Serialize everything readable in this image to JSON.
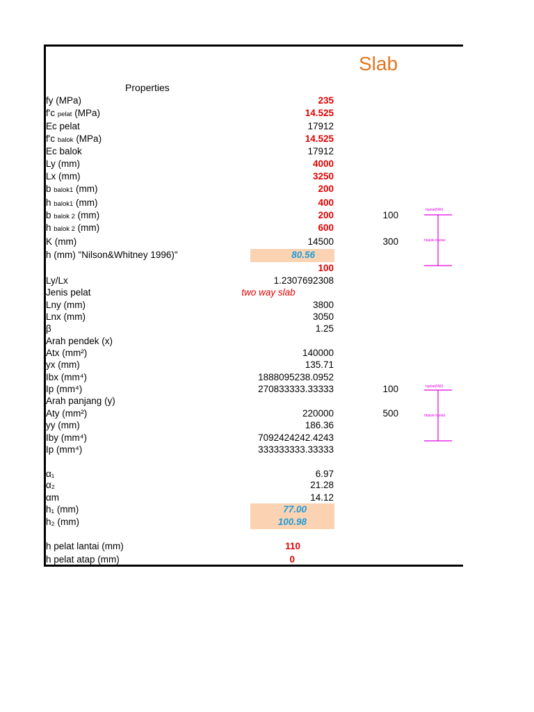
{
  "title": "Slab",
  "properties_title": "Properties",
  "rows": {
    "fy": {
      "label": "fy (MPa)",
      "value": "235"
    },
    "fc_pelat": {
      "label_a": "f'c ",
      "label_sub": "pelat",
      "label_b": " (MPa)",
      "value": "14.525"
    },
    "ec_pelat": {
      "label": "Ec pelat",
      "value": "17912"
    },
    "fc_balok": {
      "label_a": "f'c ",
      "label_sub": "balok",
      "label_b": " (MPa)",
      "value": "14.525"
    },
    "ec_balok": {
      "label": "Ec balok",
      "value": "17912"
    },
    "ly": {
      "label": "Ly (mm)",
      "value": "4000"
    },
    "lx": {
      "label": "Lx (mm)",
      "value": "3250"
    },
    "b_balok1": {
      "label_a": "b ",
      "label_sub": "balok1",
      "label_b": " (mm)",
      "value": "200"
    },
    "h_balok1": {
      "label_a": "h ",
      "label_sub": "balok1",
      "label_b": " (mm)",
      "value": "400"
    },
    "b_balok2": {
      "label_a": "b ",
      "label_sub": "balok 2",
      "label_b": " (mm)",
      "value": "200"
    },
    "h_balok2": {
      "label_a": "h ",
      "label_sub": "balok 2",
      "label_b": " (mm)",
      "value": "600"
    },
    "k": {
      "label": "K (mm)",
      "value": "14500"
    },
    "h_nilson": {
      "label": "h (mm) \"Nilson&Whitney 1996)\"",
      "value": "80.56"
    },
    "h_used": {
      "value": "100"
    },
    "ly_lx": {
      "label": "Ly/Lx",
      "value": "1.2307692308"
    },
    "jenis_pelat": {
      "label": "Jenis pelat",
      "value": "two way slab"
    },
    "lny": {
      "label": "Lny (mm)",
      "value": "3800"
    },
    "lnx": {
      "label": "Lnx (mm)",
      "value": "3050"
    },
    "beta": {
      "label": "β",
      "value": "1.25"
    },
    "arah_pendek": {
      "label": "Arah pendek (x)"
    },
    "atx": {
      "label": "Atx (mm²)",
      "value": "140000"
    },
    "yx": {
      "label": "yx (mm)",
      "value": "135.71"
    },
    "ibx": {
      "label": "Ibx (mm⁴)",
      "value": "1888095238.0952"
    },
    "ip1": {
      "label": "Ip (mm⁴)",
      "value": "270833333.33333"
    },
    "arah_panjang": {
      "label": "Arah panjang (y)"
    },
    "aty": {
      "label": "Aty (mm²)",
      "value": "220000"
    },
    "yy": {
      "label": "yy (mm)",
      "value": "186.36"
    },
    "iby": {
      "label": "Iby (mm⁴)",
      "value": "7092424242.4243"
    },
    "ip2": {
      "label": "Ip (mm⁴)",
      "value": "333333333.33333"
    },
    "alpha1": {
      "label": "α₁",
      "value": "6.97"
    },
    "alpha2": {
      "label": "α₂",
      "value": "21.28"
    },
    "alpham": {
      "label": "αm",
      "value": "14.12"
    },
    "h1": {
      "label": "h₁ (mm)",
      "value": "77.00"
    },
    "h2": {
      "label": "h₂ (mm)",
      "value": "100.98"
    },
    "h_lantai": {
      "label": "h pelat lantai (mm)",
      "value": "110"
    },
    "h_atap": {
      "label": "h pelat atap (mm)",
      "value": "0"
    }
  },
  "side_values": {
    "s1": "100",
    "s2": "300",
    "s3": "100",
    "s4": "500"
  },
  "diagram_labels": {
    "top1": "hpelat(NW)",
    "mid1": "hbalok-hpelat",
    "top2": "hpelat(NW)",
    "mid2": "hbalok-hpelat"
  },
  "colors": {
    "accent_orange": "#e0761f",
    "red": "#e00000",
    "blue": "#1e9bd7",
    "highlight": "#fbd3b3",
    "magenta": "#e000e0"
  }
}
